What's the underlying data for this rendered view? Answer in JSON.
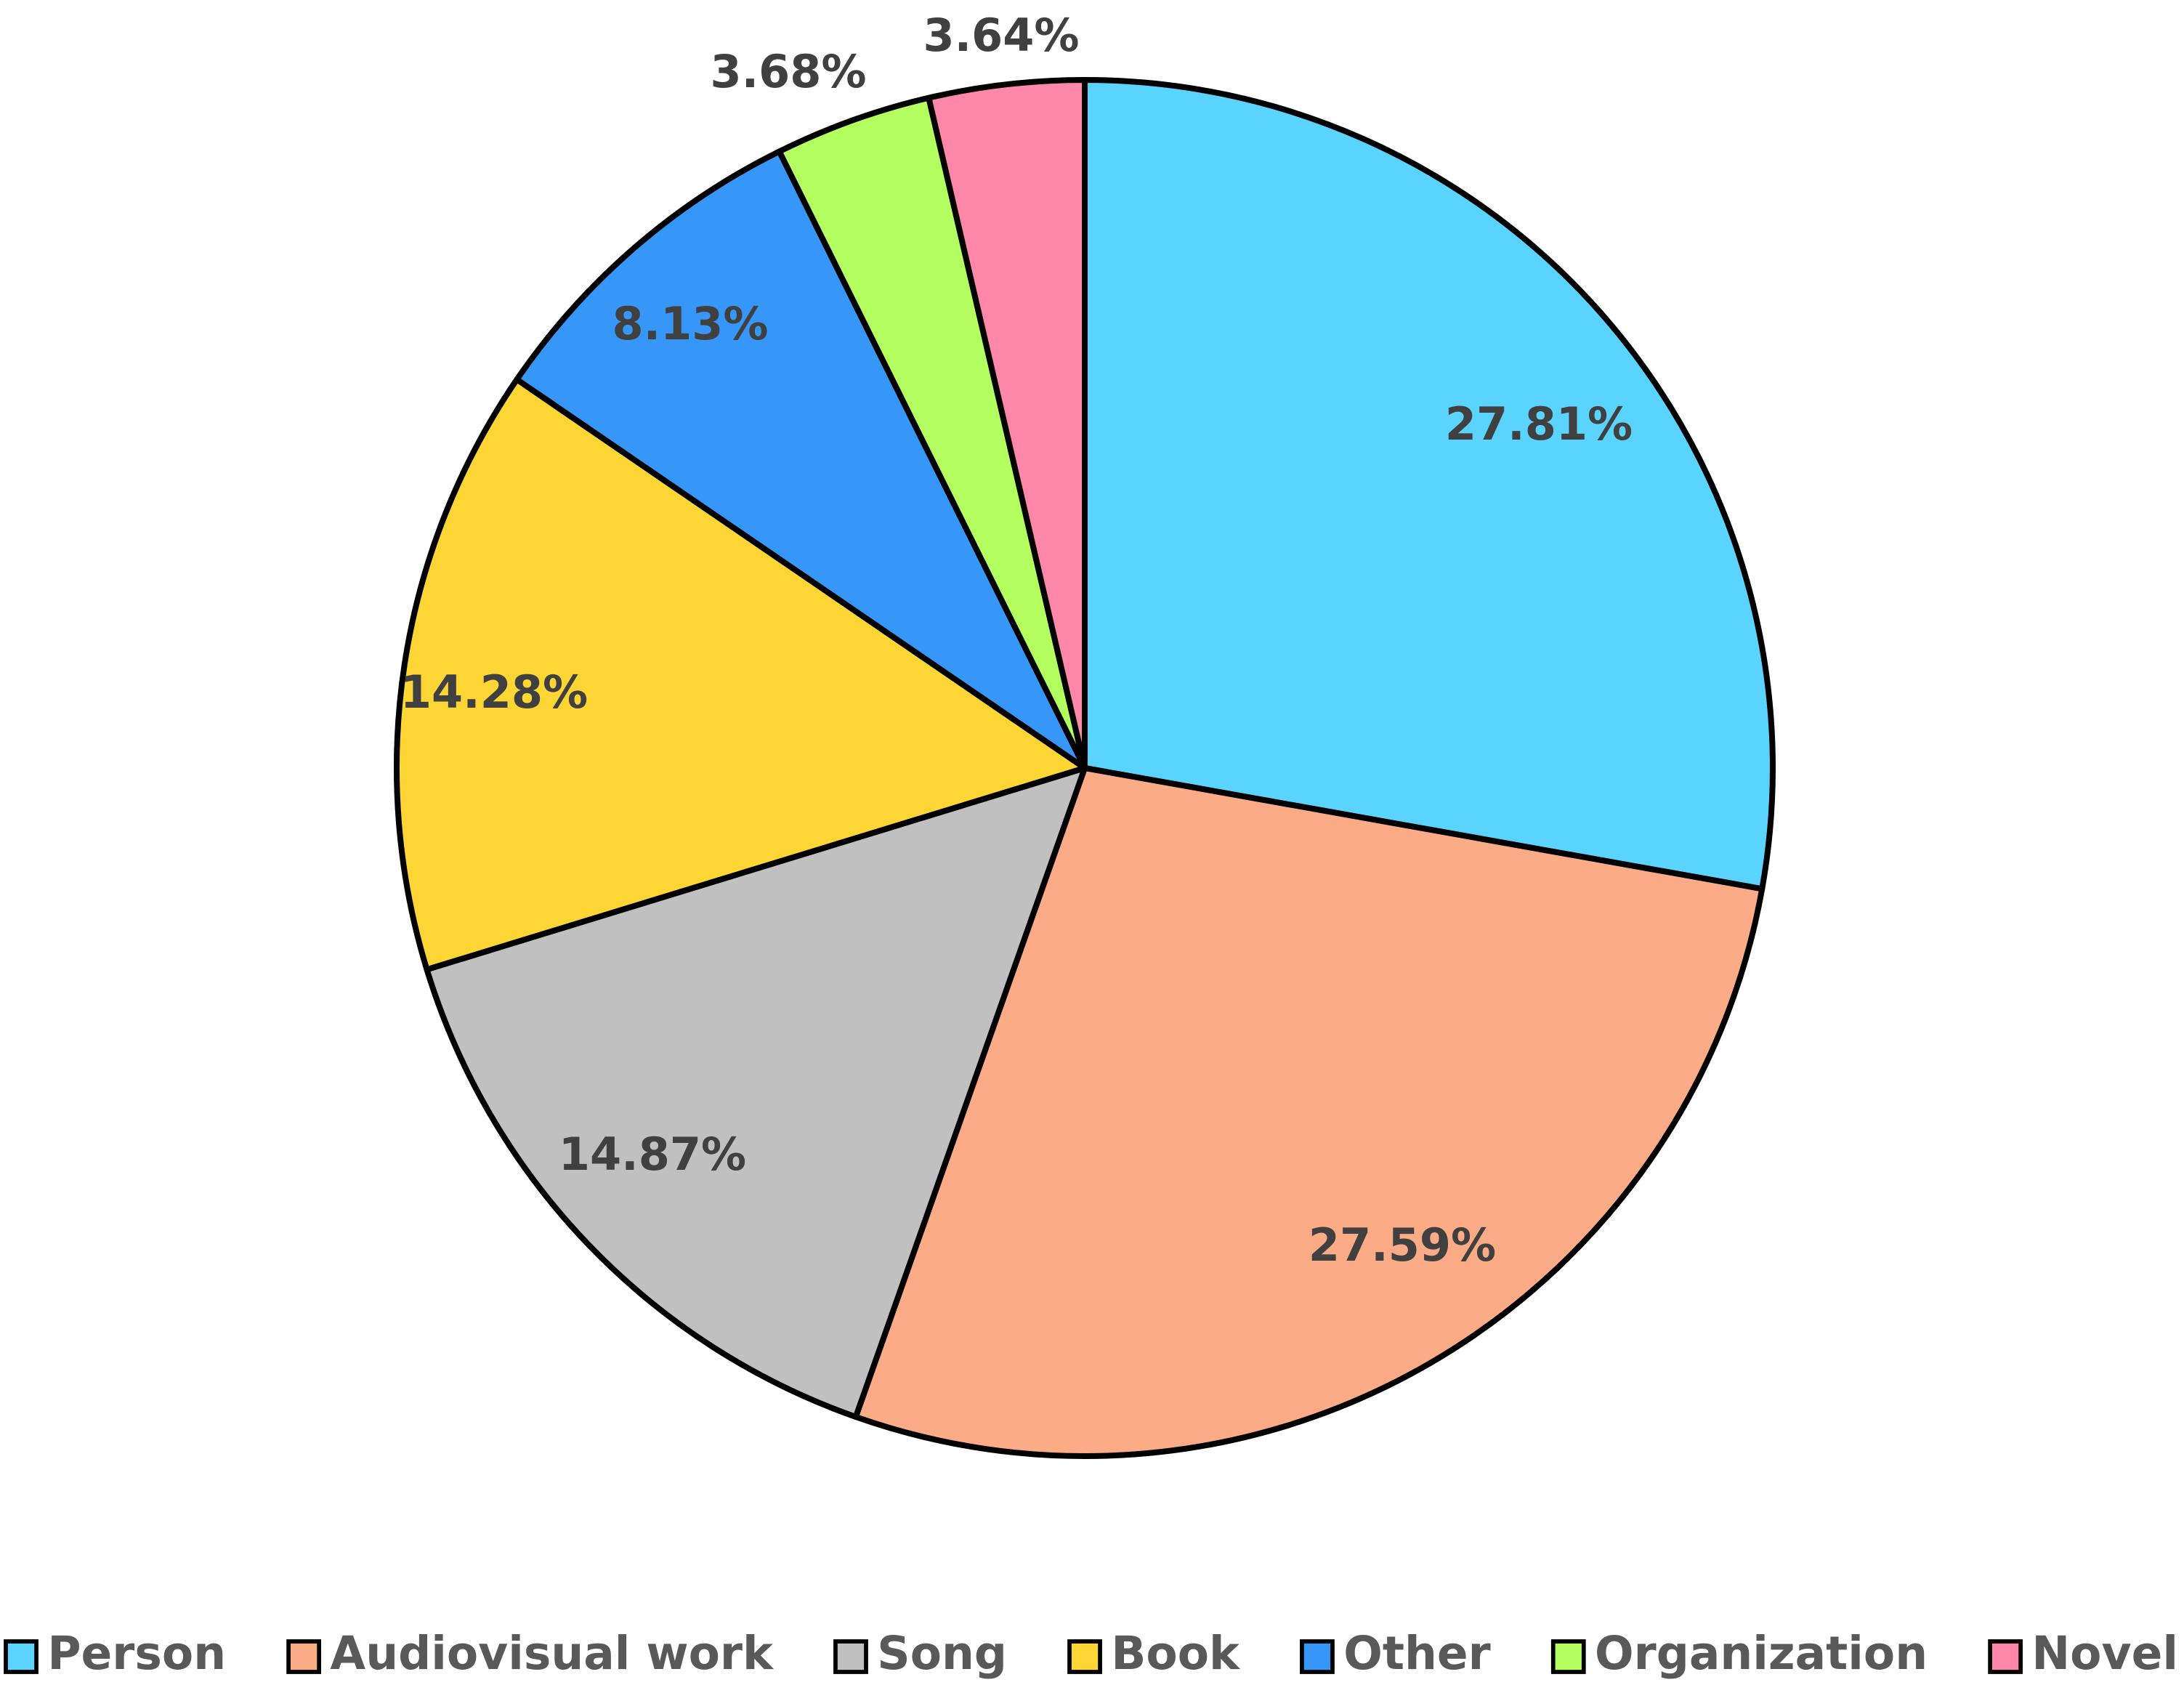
{
  "chart_data": {
    "type": "pie",
    "title": "",
    "legend_position": "bottom",
    "slices": [
      {
        "label": "Person",
        "value": 27.81,
        "value_label": "27.81%",
        "color": "#5BD3FF"
      },
      {
        "label": "Audiovisual work",
        "value": 27.59,
        "value_label": "27.59%",
        "color": "#FBAB85"
      },
      {
        "label": "Song",
        "value": 14.87,
        "value_label": "14.87%",
        "color": "#C0C0C0"
      },
      {
        "label": "Book",
        "value": 14.28,
        "value_label": "14.28%",
        "color": "#FDD535"
      },
      {
        "label": "Other",
        "value": 8.13,
        "value_label": "8.13%",
        "color": "#3797F9"
      },
      {
        "label": "Organization",
        "value": 3.68,
        "value_label": "3.68%",
        "color": "#B2FF5F"
      },
      {
        "label": "Novel",
        "value": 3.64,
        "value_label": "3.64%",
        "color": "#FF87AA"
      }
    ]
  }
}
